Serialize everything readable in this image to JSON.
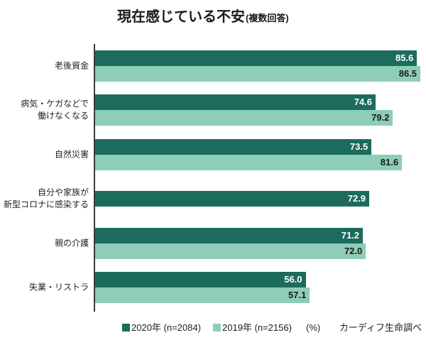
{
  "chart_data": {
    "type": "bar",
    "orientation": "horizontal",
    "title": "現在感じている不安",
    "subtitle": "(複数回答)",
    "categories": [
      "老後資金",
      "病気・ケガなどで\n働けなくなる",
      "自然災害",
      "自分や家族が\n新型コロナに感染する",
      "親の介護",
      "失業・リストラ"
    ],
    "series": [
      {
        "name": "2020年 (n=2084)",
        "color": "#1c6b5c",
        "values": [
          85.6,
          74.6,
          73.5,
          72.9,
          71.2,
          56.0
        ],
        "data_labels": [
          "85.6",
          "74.6",
          "73.5",
          "72.9",
          "71.2",
          "56.0"
        ]
      },
      {
        "name": "2019年 (n=2156)",
        "color": "#8ecdb8",
        "values": [
          86.5,
          79.2,
          81.6,
          null,
          72.0,
          57.1
        ],
        "data_labels": [
          "86.5",
          "79.2",
          "81.6",
          null,
          "72.0",
          "57.1"
        ]
      }
    ],
    "unit": "(%)",
    "source": "カーディフ生命調べ",
    "xlim": [
      0,
      88
    ],
    "grid": false,
    "legend_position": "bottom"
  }
}
